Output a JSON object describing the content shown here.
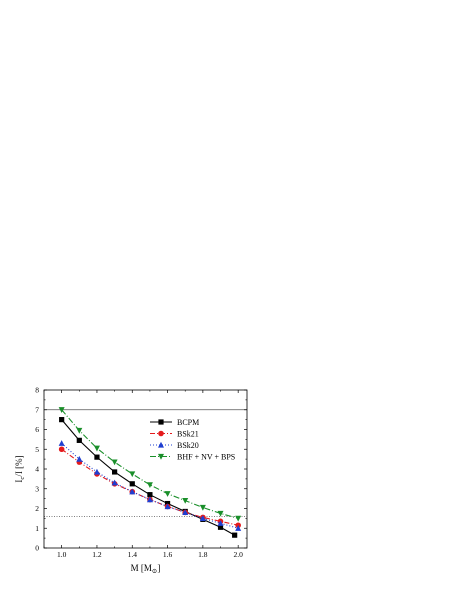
{
  "chart_data": {
    "type": "line",
    "xlabel": "M [M",
    "xlabel_sub": "⊙",
    "xlabel_end": "]",
    "ylabel": "I",
    "ylabel_sub": "c",
    "ylabel_end": "/I [%]",
    "xlim": [
      0.9,
      2.05
    ],
    "ylim": [
      0,
      8
    ],
    "xticks": [
      1.0,
      1.2,
      1.4,
      1.6,
      1.8,
      2.0
    ],
    "xtick_labels": [
      "1.0",
      "1.2",
      "1.4",
      "1.6",
      "1.8",
      "2.0"
    ],
    "yticks": [
      0,
      1,
      2,
      3,
      4,
      5,
      6,
      7,
      8
    ],
    "ytick_labels": [
      "0",
      "1",
      "2",
      "3",
      "4",
      "5",
      "6",
      "7",
      "8"
    ],
    "grid": false,
    "legend_position": "top-right",
    "reference_lines": [
      {
        "y": 7.0,
        "style": "solid",
        "color": "#555555"
      },
      {
        "y": 1.6,
        "style": "dotted",
        "color": "#555555"
      }
    ],
    "series": [
      {
        "name": "BCPM",
        "color": "#000000",
        "marker": "square",
        "dash": "",
        "x": [
          1.0,
          1.1,
          1.2,
          1.3,
          1.4,
          1.5,
          1.6,
          1.7,
          1.8,
          1.9,
          1.98
        ],
        "y": [
          6.5,
          5.45,
          4.6,
          3.85,
          3.25,
          2.7,
          2.25,
          1.85,
          1.45,
          1.05,
          0.65
        ]
      },
      {
        "name": "BSk21",
        "color": "#e41a1c",
        "marker": "circle",
        "dash": "5,2,1,2",
        "x": [
          1.0,
          1.1,
          1.2,
          1.3,
          1.4,
          1.5,
          1.6,
          1.7,
          1.8,
          1.9,
          2.0
        ],
        "y": [
          5.0,
          4.35,
          3.75,
          3.25,
          2.85,
          2.45,
          2.1,
          1.8,
          1.55,
          1.35,
          1.15
        ]
      },
      {
        "name": "BSk20",
        "color": "#1f3fd1",
        "marker": "triangle-up",
        "dash": "1,2",
        "x": [
          1.0,
          1.1,
          1.2,
          1.3,
          1.4,
          1.5,
          1.6,
          1.7,
          1.8,
          1.9,
          2.0
        ],
        "y": [
          5.3,
          4.5,
          3.85,
          3.3,
          2.85,
          2.45,
          2.1,
          1.8,
          1.5,
          1.25,
          1.0
        ]
      },
      {
        "name": "BHF + NV + BPS",
        "color": "#1a8f2a",
        "marker": "triangle-down",
        "dash": "6,2,1,2",
        "x": [
          1.0,
          1.1,
          1.2,
          1.3,
          1.4,
          1.5,
          1.6,
          1.7,
          1.8,
          1.9,
          2.0
        ],
        "y": [
          7.0,
          5.95,
          5.05,
          4.35,
          3.75,
          3.2,
          2.75,
          2.4,
          2.05,
          1.75,
          1.5
        ]
      }
    ]
  }
}
